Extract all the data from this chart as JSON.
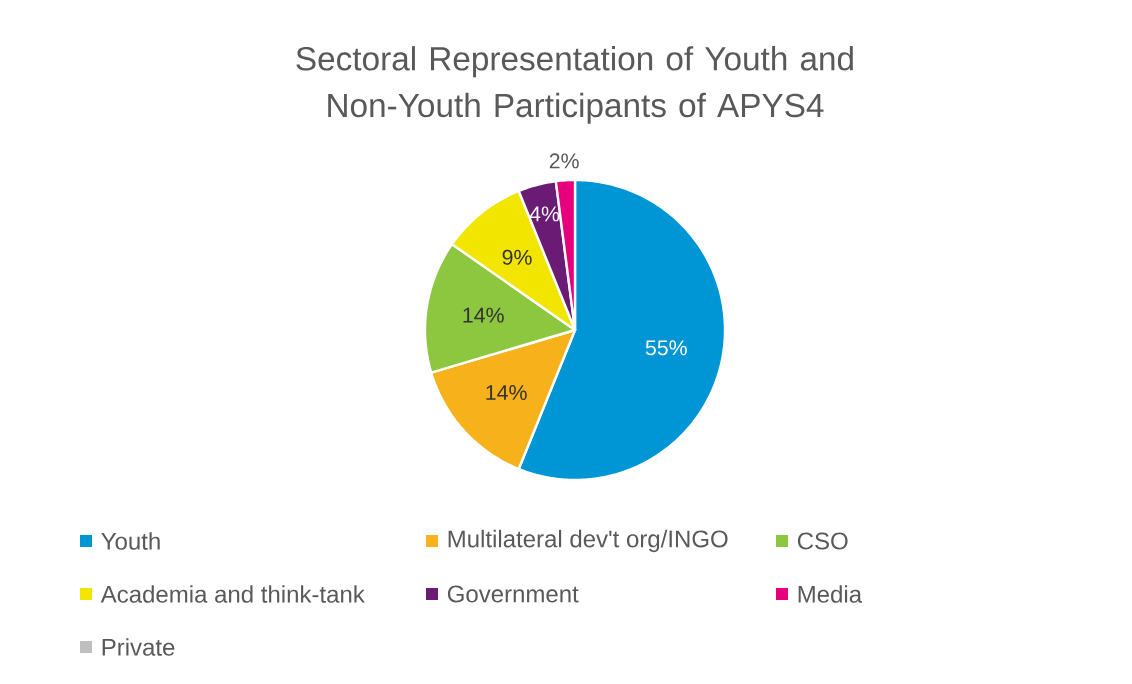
{
  "chart_data": {
    "type": "pie",
    "title": "Sectoral Representation of Youth and Non-Youth Participants of APYS4",
    "categories": [
      "Youth",
      "Multilateral dev't org/INGO",
      "CSO",
      "Academia and think-tank",
      "Government",
      "Media",
      "Private"
    ],
    "values": [
      55,
      14,
      14,
      9,
      4,
      2,
      0
    ],
    "colors": [
      "#0096d6",
      "#f7b21b",
      "#8dc63f",
      "#f2e500",
      "#6a1b74",
      "#e6007e",
      "#bfbfbf"
    ],
    "value_labels": [
      "55%",
      "14%",
      "14%",
      "9%",
      "4%",
      "2%",
      null
    ],
    "legend": "bottom"
  }
}
